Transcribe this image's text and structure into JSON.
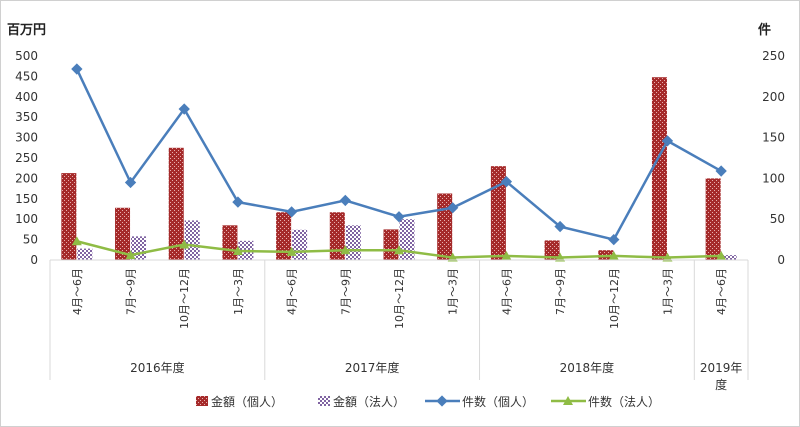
{
  "chart_data": {
    "type": "bar",
    "y_left_unit": "百万円",
    "y_right_unit": "件",
    "y_left_ticks": [
      "0",
      "50",
      "100",
      "150",
      "200",
      "250",
      "300",
      "350",
      "400",
      "450",
      "500"
    ],
    "y_right_ticks": [
      "0",
      "50",
      "100",
      "150",
      "200",
      "250"
    ],
    "ylim_left": [
      0,
      500
    ],
    "ylim_right": [
      0,
      250
    ],
    "categories": [
      "4月～6月",
      "7月～9月",
      "10月～12月",
      "1月～3月",
      "4月～6月",
      "7月～9月",
      "10月～12月",
      "1月～3月",
      "4月～6月",
      "7月～9月",
      "10月～12月",
      "1月～3月",
      "4月～6月"
    ],
    "groups": [
      {
        "label": "2016年度",
        "start": 0,
        "end": 3
      },
      {
        "label": "2017年度",
        "start": 4,
        "end": 7
      },
      {
        "label": "2018年度",
        "start": 8,
        "end": 11
      },
      {
        "label": "2019年度",
        "start": 12,
        "end": 12
      }
    ],
    "series": [
      {
        "name": "金額（個人）",
        "kind": "bar",
        "axis": "left",
        "color": "#a52a2a",
        "values": [
          213,
          128,
          275,
          85,
          117,
          117,
          75,
          163,
          230,
          48,
          24,
          448,
          200
        ]
      },
      {
        "name": "金額（法人）",
        "kind": "bar",
        "axis": "left",
        "color": "#8064a2",
        "values": [
          28,
          58,
          97,
          47,
          74,
          85,
          100,
          0,
          0,
          0,
          0,
          0,
          12
        ]
      },
      {
        "name": "件数（個人）",
        "kind": "line",
        "axis": "right",
        "color": "#4a7ebb",
        "values": [
          234,
          95,
          185,
          71,
          59,
          73,
          53,
          64,
          96,
          41,
          25,
          146,
          109
        ]
      },
      {
        "name": "件数（法人）",
        "kind": "line",
        "axis": "right",
        "color": "#8fbc45",
        "values": [
          23,
          6,
          19,
          11,
          10,
          12,
          12,
          3,
          5,
          3,
          5,
          3,
          5
        ]
      }
    ],
    "grid": false,
    "legend_position": "bottom"
  }
}
